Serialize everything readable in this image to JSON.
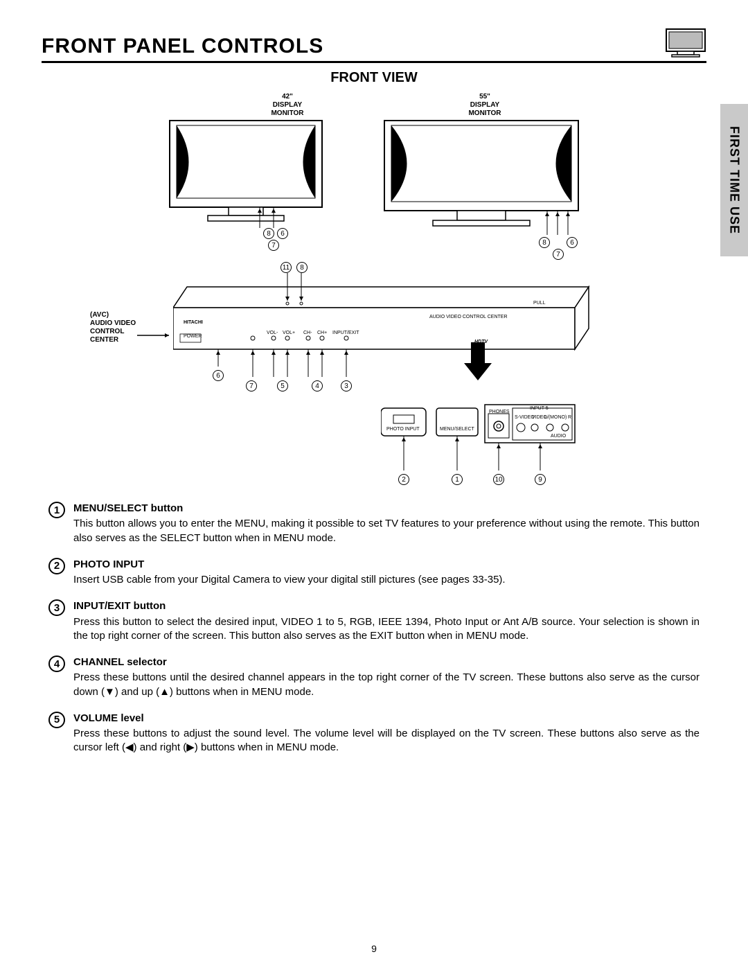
{
  "header": {
    "title": "FRONT PANEL CONTROLS",
    "subtitle": "FRONT VIEW",
    "side_tab": "FIRST TIME USE"
  },
  "diagram": {
    "monitor_42_label": "42\"\nDISPLAY\nMONITOR",
    "monitor_55_label": "55\"\nDISPLAY\nMONITOR",
    "avc_label": "(AVC)\nAUDIO VIDEO\nCONTROL\nCENTER",
    "avc_text": "AUDIO VIDEO CONTROL CENTER",
    "pull": "PULL",
    "brand": "HITACHI",
    "power": "POWER",
    "vol_minus": "VOL-",
    "vol_plus": "VOL+",
    "ch_minus": "CH-",
    "ch_plus": "CH+",
    "input_exit": "INPUT/EXIT",
    "photo_input": "PHOTO INPUT",
    "menu_select": "MENU/SELECT",
    "phones": "PHONES",
    "input5": "INPUT 5",
    "svideo": "S-VIDEO",
    "video": "VIDEO",
    "lr_mono": "L/(MONO)",
    "audio_r": "R",
    "audio": "AUDIO",
    "hdtv": "HDTV"
  },
  "items": [
    {
      "num": "1",
      "title": "MENU/SELECT button",
      "desc": "This button allows you to enter the MENU, making it possible to set TV features to your preference without using the remote.  This button also serves as the SELECT button when in MENU mode."
    },
    {
      "num": "2",
      "title": "PHOTO INPUT",
      "desc": "Insert USB cable from your Digital Camera to view your digital still pictures (see pages 33-35)."
    },
    {
      "num": "3",
      "title": "INPUT/EXIT button",
      "desc": "Press this button to select the desired input, VIDEO 1 to 5, RGB, IEEE 1394, Photo Input or Ant A/B source.  Your selection is shown in the top right corner of the screen.  This button also serves as the EXIT button when in MENU mode."
    },
    {
      "num": "4",
      "title": "CHANNEL selector",
      "desc": "Press these buttons until the desired channel appears in the top right corner of the TV screen.  These buttons also serve as the cursor down (▼) and up (▲) buttons when in MENU mode."
    },
    {
      "num": "5",
      "title": "VOLUME level",
      "desc": "Press these buttons to adjust the sound level.  The volume level will be displayed on the TV screen.  These buttons also serve as the cursor left (◀) and right (▶) buttons when in MENU mode."
    }
  ],
  "page_number": "9",
  "colors": {
    "background": "#ffffff",
    "text": "#000000",
    "side_tab_bg": "#c9c9c9",
    "rule": "#000000"
  }
}
